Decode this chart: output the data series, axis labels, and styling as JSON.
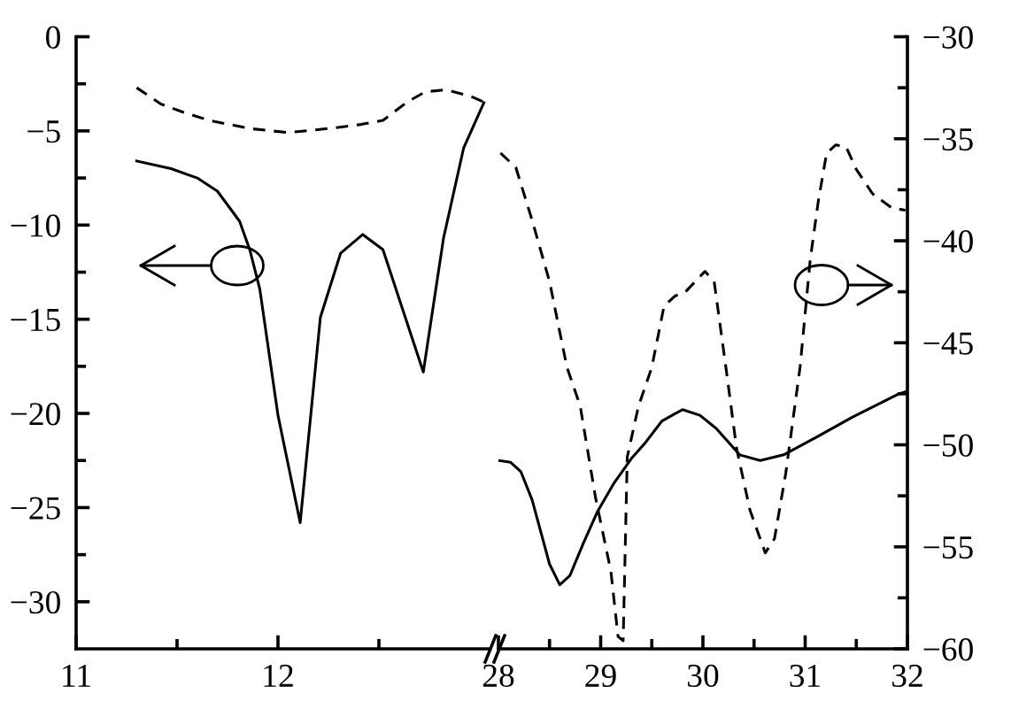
{
  "chart_data": [
    {
      "type": "line",
      "xlim": [
        11,
        13.05
      ],
      "xticks": [
        11,
        {
          "value": 11.5,
          "label": null
        },
        12,
        {
          "value": 12.5,
          "label": null
        }
      ],
      "ylim": [
        -32.5,
        0
      ],
      "yticks": [
        {
          "value": 0,
          "label": "0"
        },
        {
          "value": -2.5,
          "label": null
        },
        {
          "value": -5,
          "label": "−5"
        },
        {
          "value": -7.5,
          "label": null
        },
        {
          "value": -10,
          "label": "−10"
        },
        {
          "value": -12.5,
          "label": null
        },
        {
          "value": -15,
          "label": "−15"
        },
        {
          "value": -17.5,
          "label": null
        },
        {
          "value": -20,
          "label": "−20"
        },
        {
          "value": -22.5,
          "label": null
        },
        {
          "value": -25,
          "label": "−25"
        },
        {
          "value": -27.5,
          "label": null
        },
        {
          "value": -30,
          "label": "−30"
        }
      ],
      "y2lim": [
        -60,
        -30
      ],
      "series": [
        {
          "color": "#000000",
          "line_style": "solid",
          "x": [
            11.3,
            11.47,
            11.6,
            11.7,
            11.81,
            11.86,
            11.91,
            12.0,
            12.11,
            12.21,
            12.31,
            12.42,
            12.52,
            12.72,
            12.82,
            12.92,
            13.02
          ],
          "values": [
            -6.6,
            -7.0,
            -7.5,
            -8.2,
            -9.8,
            -11.3,
            -13.4,
            -20.1,
            -25.8,
            -14.9,
            -11.5,
            -10.5,
            -11.3,
            -17.8,
            -10.7,
            -5.9,
            -3.5
          ]
        },
        {
          "color": "#000000",
          "line_style": "dashed",
          "axis": "y2",
          "x": [
            11.3,
            11.42,
            11.53,
            11.66,
            11.86,
            12.05,
            12.25,
            12.41,
            12.52,
            12.64,
            12.73,
            12.83,
            12.95,
            13.02
          ],
          "values": [
            -32.5,
            -33.3,
            -33.7,
            -34.1,
            -34.5,
            -34.7,
            -34.5,
            -34.3,
            -34.1,
            -33.2,
            -32.7,
            -32.6,
            -32.9,
            -33.2
          ]
        }
      ]
    },
    {
      "type": "line",
      "xlim": [
        28,
        32
      ],
      "xticks": [
        28,
        {
          "value": 28.5,
          "label": null
        },
        29,
        {
          "value": 29.5,
          "label": null
        },
        30,
        {
          "value": 30.5,
          "label": null
        },
        31,
        {
          "value": 31.5,
          "label": null
        },
        32
      ],
      "ylim": [
        -32.5,
        0
      ],
      "y2lim": [
        -60,
        -30
      ],
      "y2ticks": [
        {
          "value": -30,
          "label": "−30"
        },
        {
          "value": -32.5,
          "label": null
        },
        {
          "value": -35,
          "label": "−35"
        },
        {
          "value": -37.5,
          "label": null
        },
        {
          "value": -40,
          "label": "−40"
        },
        {
          "value": -42.5,
          "label": null
        },
        {
          "value": -45,
          "label": "−45"
        },
        {
          "value": -47.5,
          "label": null
        },
        {
          "value": -50,
          "label": "−50"
        },
        {
          "value": -52.5,
          "label": null
        },
        {
          "value": -55,
          "label": "−55"
        },
        {
          "value": -57.5,
          "label": null
        },
        {
          "value": -60,
          "label": "−60"
        }
      ],
      "series": [
        {
          "color": "#000000",
          "line_style": "solid",
          "x": [
            28.0,
            28.12,
            28.22,
            28.33,
            28.5,
            28.6,
            28.7,
            28.83,
            28.97,
            29.13,
            29.3,
            29.43,
            29.6,
            29.8,
            29.97,
            30.13,
            30.36,
            30.56,
            30.79,
            31.13,
            31.46,
            31.9,
            31.98
          ],
          "values": [
            -22.5,
            -22.6,
            -23.1,
            -24.6,
            -28.0,
            -29.1,
            -28.6,
            -26.9,
            -25.2,
            -23.7,
            -22.4,
            -21.6,
            -20.4,
            -19.8,
            -20.1,
            -20.8,
            -22.2,
            -22.5,
            -22.2,
            -21.2,
            -20.2,
            -19.0,
            -18.85
          ]
        },
        {
          "color": "#000000",
          "line_style": "dashed",
          "axis": "y2",
          "x": [
            28.02,
            28.17,
            28.33,
            28.5,
            28.67,
            28.8,
            28.95,
            29.1,
            29.17,
            29.22,
            29.26,
            29.37,
            29.5,
            29.62,
            29.73,
            29.83,
            30.02,
            30.11,
            30.23,
            30.33,
            30.46,
            30.61,
            30.7,
            30.81,
            30.95,
            31.05,
            31.13,
            31.21,
            31.3,
            31.4,
            31.5,
            31.66,
            31.85,
            31.98
          ],
          "values": [
            -35.7,
            -36.4,
            -39.0,
            -42.0,
            -46.2,
            -48.1,
            -52.6,
            -56.2,
            -59.4,
            -59.6,
            -50.6,
            -48.1,
            -46.2,
            -43.2,
            -42.7,
            -42.5,
            -41.5,
            -42.0,
            -46.4,
            -50.2,
            -53.2,
            -55.3,
            -54.6,
            -51.4,
            -46.2,
            -40.9,
            -38.0,
            -35.7,
            -35.3,
            -35.4,
            -36.5,
            -37.7,
            -38.4,
            -38.5
          ]
        }
      ]
    }
  ]
}
